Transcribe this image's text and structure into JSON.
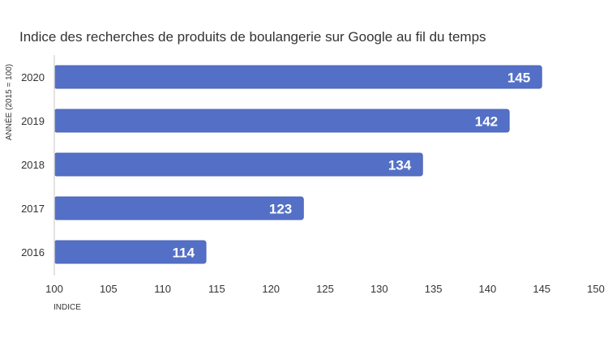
{
  "chart_data": {
    "type": "bar",
    "orientation": "horizontal",
    "title": "Indice des recherches de produits de boulangerie sur Google au fil du temps",
    "xlabel": "INDICE",
    "ylabel": "ANNÉE (2015 = 100)",
    "categories": [
      "2020",
      "2019",
      "2018",
      "2017",
      "2016"
    ],
    "values": [
      145,
      142,
      134,
      123,
      114
    ],
    "data_labels": [
      "145",
      "142",
      "134",
      "123",
      "114"
    ],
    "xlim": [
      100,
      150
    ],
    "xticks": [
      100,
      105,
      110,
      115,
      120,
      125,
      130,
      135,
      140,
      145,
      150
    ],
    "xtick_labels": [
      "100",
      "105",
      "110",
      "115",
      "120",
      "125",
      "130",
      "135",
      "140",
      "145",
      "150"
    ],
    "grid": false,
    "legend": "none",
    "colors": {
      "bar": "#5470c6",
      "bar_border": "#4a63b8",
      "axis": "#d9d9d9",
      "text": "#333333",
      "label": "#ffffff"
    }
  }
}
